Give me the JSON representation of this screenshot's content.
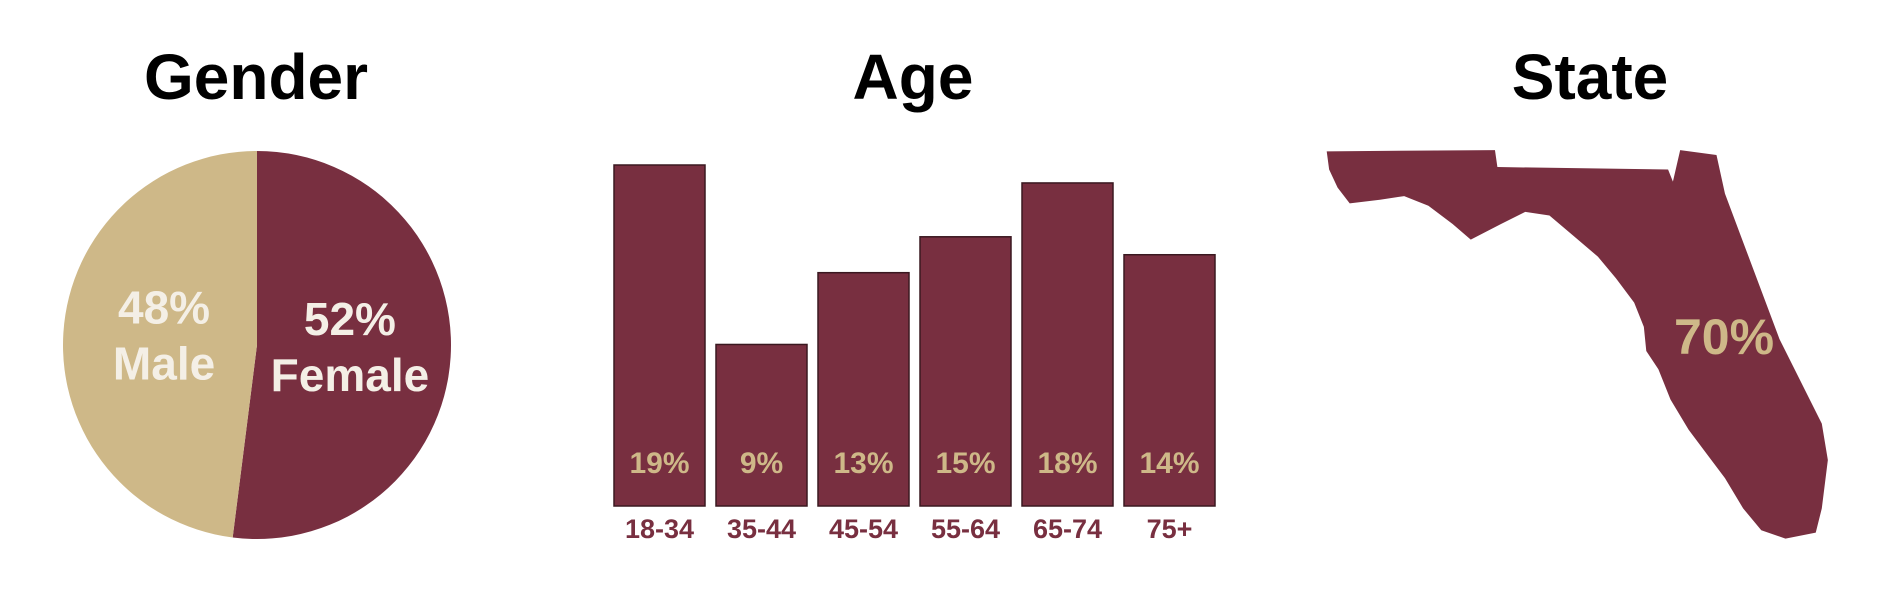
{
  "chart_data": [
    {
      "type": "pie",
      "title": "Gender",
      "categories": [
        "Female",
        "Male"
      ],
      "values": [
        52,
        48
      ],
      "value_labels": [
        "52%",
        "48%"
      ],
      "colors": [
        "#782F40",
        "#CEB888"
      ],
      "label_color": "#F4EFE6"
    },
    {
      "type": "bar",
      "title": "Age",
      "categories": [
        "18-34",
        "35-44",
        "45-54",
        "55-64",
        "65-74",
        "75+"
      ],
      "values": [
        19,
        9,
        13,
        15,
        18,
        14
      ],
      "value_labels": [
        "19%",
        "9%",
        "13%",
        "15%",
        "18%",
        "14%"
      ],
      "color": "#782F40",
      "label_color": "#CEB888",
      "category_color": "#782F40"
    },
    {
      "type": "map",
      "title": "State",
      "value": 70,
      "value_label": "70%",
      "color": "#782F40",
      "label_color": "#CEB888"
    }
  ]
}
